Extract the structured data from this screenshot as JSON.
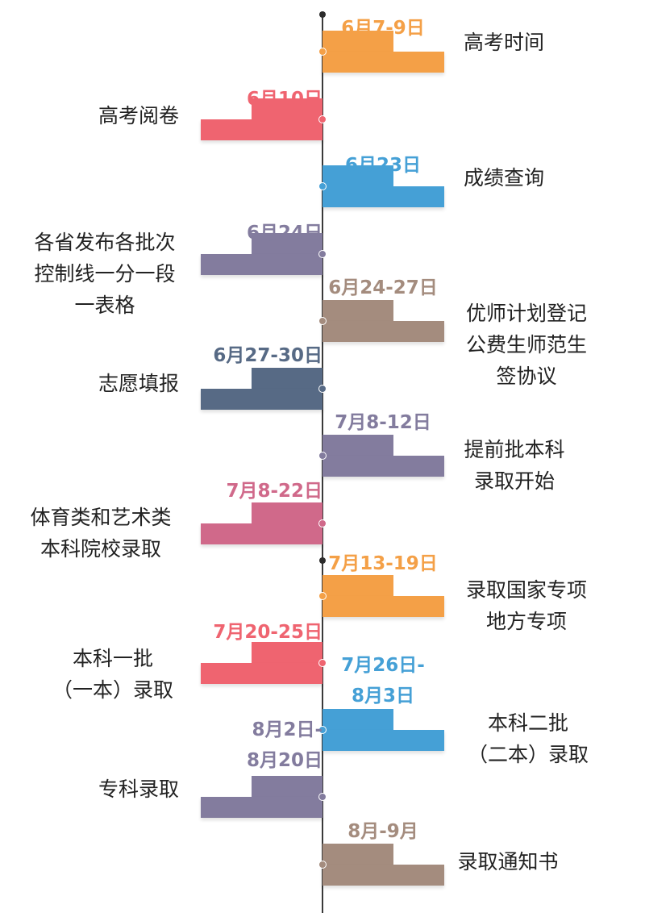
{
  "colors": {
    "orange": "#f4a047",
    "red": "#ef6470",
    "blue": "#45a0d6",
    "purple": "#837c9e",
    "brown": "#a48c7e",
    "slate": "#576a85",
    "pink": "#d0698a",
    "axis": "#3a3a3a"
  },
  "timeline": [
    {
      "side": "right",
      "color": "orange",
      "date": [
        "6月7-9日"
      ],
      "label": [
        "高考时间"
      ]
    },
    {
      "side": "left",
      "color": "red",
      "date": [
        "6月10日"
      ],
      "label": [
        "高考阅卷"
      ]
    },
    {
      "side": "right",
      "color": "blue",
      "date": [
        "6月23日"
      ],
      "label": [
        "成绩查询"
      ]
    },
    {
      "side": "left",
      "color": "purple",
      "date": [
        "6月24日"
      ],
      "label": [
        "各省发布各批次",
        "控制线一分一段",
        "一表格"
      ]
    },
    {
      "side": "right",
      "color": "brown",
      "date": [
        "6月24-27日"
      ],
      "label": [
        "优师计划登记",
        "公费生师范生",
        "签协议"
      ]
    },
    {
      "side": "left",
      "color": "slate",
      "date": [
        "6月27-30日"
      ],
      "label": [
        "志愿填报"
      ]
    },
    {
      "side": "right",
      "color": "purple",
      "date": [
        "7月8-12日"
      ],
      "label": [
        "提前批本科",
        "录取开始"
      ]
    },
    {
      "side": "left",
      "color": "pink",
      "date": [
        "7月8-22日"
      ],
      "label": [
        "体育类和艺术类",
        "本科院校录取"
      ]
    },
    {
      "side": "right",
      "color": "orange",
      "date": [
        "7月13-19日"
      ],
      "label": [
        "录取国家专项",
        "地方专项"
      ]
    },
    {
      "side": "left",
      "color": "red",
      "date": [
        "7月20-25日"
      ],
      "label": [
        "本科一批",
        "（一本）录取"
      ]
    },
    {
      "side": "right",
      "color": "blue",
      "date": [
        "7月26日-",
        "8月3日"
      ],
      "label": [
        "本科二批",
        "（二本）录取"
      ]
    },
    {
      "side": "left",
      "color": "purple",
      "date": [
        "8月2日-",
        "8月20日"
      ],
      "label": [
        "专科录取"
      ]
    },
    {
      "side": "right",
      "color": "brown",
      "date": [
        "8月-9月"
      ],
      "label": [
        "录取通知书"
      ]
    }
  ]
}
